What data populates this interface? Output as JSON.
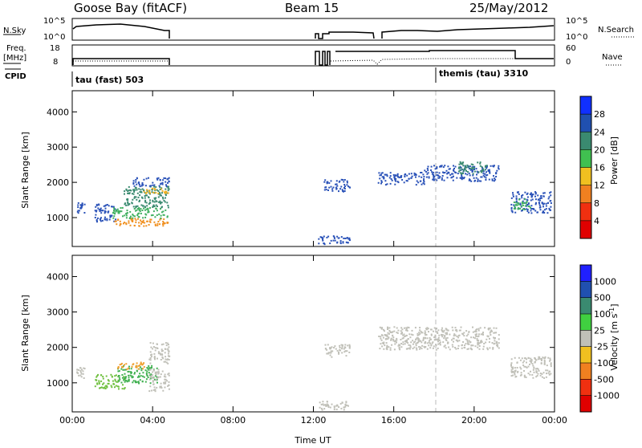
{
  "header": {
    "station": "Goose Bay (fitACF)",
    "beam": "Beam 15",
    "date": "25/May/2012"
  },
  "status_panels": {
    "nsky": {
      "label": "N.Sky",
      "ticks": [
        "10^5",
        "10^0"
      ],
      "right_ticks": [
        "10^5",
        "10^0"
      ],
      "right_label": "N.Search"
    },
    "freq": {
      "label_line1": "Freq.",
      "label_line2": "[MHz]",
      "ticks": [
        "18",
        "8"
      ],
      "right_ticks": [
        "60",
        "0"
      ],
      "right_label": "Nave"
    },
    "cpid": {
      "label": "CPID",
      "mode1": "tau (fast) 503",
      "mode2": "themis (tau) 3310"
    }
  },
  "chart_data": [
    {
      "type": "heatmap",
      "name": "power",
      "ylabel": "Slant Range [km]",
      "ylim": [
        180,
        4600
      ],
      "yticks": [
        "1000",
        "2000",
        "3000",
        "4000"
      ],
      "xlim": [
        0,
        24
      ],
      "colorbar": {
        "label": "Power [dB]",
        "ticks": [
          "28",
          "24",
          "20",
          "16",
          "12",
          "8",
          "4"
        ],
        "colors": [
          "#1030ff",
          "#2050b0",
          "#3a8a70",
          "#40c050",
          "#f0c020",
          "#f08020",
          "#f03010",
          "#e00000"
        ]
      },
      "regions": [
        {
          "t0": 0.2,
          "t1": 0.6,
          "r0": 1150,
          "r1": 1450,
          "color": "#2a52b8"
        },
        {
          "t0": 1.1,
          "t1": 2.2,
          "r0": 900,
          "r1": 1400,
          "color": "#2a52b8"
        },
        {
          "t0": 2.0,
          "t1": 4.8,
          "r0": 780,
          "r1": 1000,
          "color": "#f09020"
        },
        {
          "t0": 2.0,
          "t1": 4.8,
          "r0": 1000,
          "r1": 1300,
          "color": "#40b060"
        },
        {
          "t0": 2.5,
          "t1": 4.8,
          "r0": 1300,
          "r1": 1900,
          "color": "#3a8a70"
        },
        {
          "t0": 3.5,
          "t1": 4.8,
          "r0": 1700,
          "r1": 1850,
          "color": "#f0b020"
        },
        {
          "t0": 3.0,
          "t1": 4.8,
          "r0": 1900,
          "r1": 2150,
          "color": "#2a52b8"
        },
        {
          "t0": 12.2,
          "t1": 13.8,
          "r0": 250,
          "r1": 500,
          "color": "#2a52b8"
        },
        {
          "t0": 12.5,
          "t1": 13.8,
          "r0": 1750,
          "r1": 2100,
          "color": "#2a52b8"
        },
        {
          "t0": 15.2,
          "t1": 17.5,
          "r0": 1950,
          "r1": 2300,
          "color": "#2a52b8"
        },
        {
          "t0": 17.5,
          "t1": 21.2,
          "r0": 2050,
          "r1": 2500,
          "color": "#2a52b8"
        },
        {
          "t0": 19.2,
          "t1": 20.6,
          "r0": 2250,
          "r1": 2600,
          "color": "#3a8a70"
        },
        {
          "t0": 21.8,
          "t1": 23.8,
          "r0": 1150,
          "r1": 1750,
          "color": "#2a52b8"
        },
        {
          "t0": 21.9,
          "t1": 22.8,
          "r0": 1250,
          "r1": 1550,
          "color": "#40b060"
        }
      ]
    },
    {
      "type": "heatmap",
      "name": "velocity",
      "ylabel": "Slant Range [km]",
      "ylim": [
        180,
        4600
      ],
      "yticks": [
        "1000",
        "2000",
        "3000",
        "4000"
      ],
      "xlim": [
        0,
        24
      ],
      "xticks": [
        "00:00",
        "04:00",
        "08:00",
        "12:00",
        "16:00",
        "20:00",
        "00:00"
      ],
      "xlabel": "Time UT",
      "colorbar": {
        "label": "Velocity [m s",
        "label_sup": "-1",
        "label_end": "]",
        "ticks": [
          "1000",
          "500",
          "100",
          "25",
          "-25",
          "-100",
          "-500",
          "-1000"
        ],
        "colors": [
          "#2020ff",
          "#2050b0",
          "#3a8a70",
          "#40d040",
          "#c0c0b8",
          "#f0c020",
          "#f08020",
          "#f03010",
          "#e00000"
        ]
      },
      "regions": [
        {
          "t0": 0.2,
          "t1": 0.6,
          "r0": 1150,
          "r1": 1450,
          "color": "#c0c0b8"
        },
        {
          "t0": 1.1,
          "t1": 2.6,
          "r0": 850,
          "r1": 1250,
          "color": "#70c040"
        },
        {
          "t0": 2.2,
          "t1": 4.2,
          "r0": 1000,
          "r1": 1500,
          "color": "#40b050"
        },
        {
          "t0": 2.2,
          "t1": 3.6,
          "r0": 1400,
          "r1": 1600,
          "color": "#f0a030"
        },
        {
          "t0": 3.8,
          "t1": 4.8,
          "r0": 780,
          "r1": 1400,
          "color": "#c0c0b8"
        },
        {
          "t0": 3.8,
          "t1": 4.8,
          "r0": 1550,
          "r1": 2150,
          "color": "#c0c0b8"
        },
        {
          "t0": 12.2,
          "t1": 13.8,
          "r0": 250,
          "r1": 500,
          "color": "#c0c0b8"
        },
        {
          "t0": 12.5,
          "t1": 13.8,
          "r0": 1750,
          "r1": 2100,
          "color": "#c0c0b8"
        },
        {
          "t0": 15.2,
          "t1": 21.2,
          "r0": 1950,
          "r1": 2600,
          "color": "#c0c0b8"
        },
        {
          "t0": 21.8,
          "t1": 23.8,
          "r0": 1150,
          "r1": 1750,
          "color": "#c0c0b8"
        }
      ]
    }
  ]
}
